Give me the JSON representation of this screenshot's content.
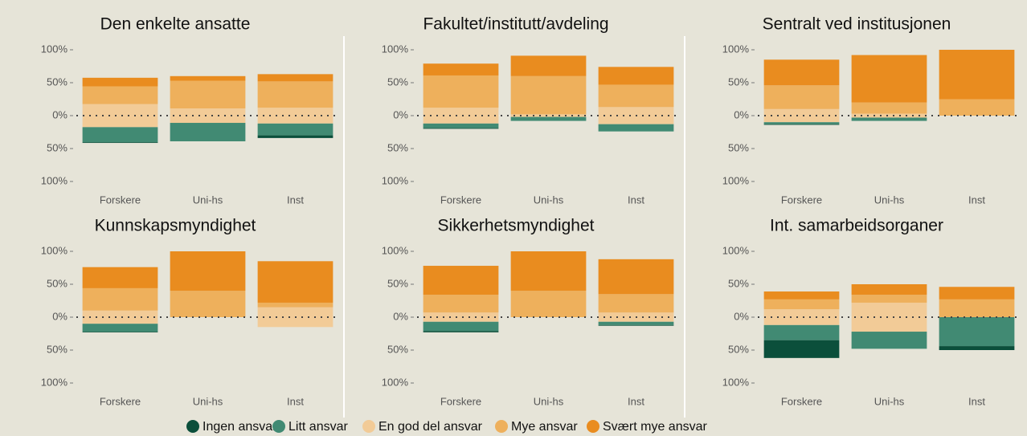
{
  "chart_data": [
    {
      "type": "bar",
      "title": "Den enkelte ansatte",
      "categories": [
        "Forskere",
        "Uni-hs",
        "Inst"
      ],
      "series": [
        {
          "name": "Ingen ansvar",
          "color": "#0b4f3b",
          "values": [
            1,
            0,
            4
          ]
        },
        {
          "name": "Litt ansvar",
          "color": "#418a73",
          "values": [
            23,
            28,
            18
          ]
        },
        {
          "name": "En god del ansvar",
          "color": "#f2cb97",
          "values": [
            35,
            22,
            24
          ]
        },
        {
          "name": "Mye ansvar",
          "color": "#eeb05c",
          "values": [
            27,
            42,
            40
          ]
        },
        {
          "name": "Svært mye ansvar",
          "color": "#e98c1f",
          "values": [
            13,
            7,
            11
          ]
        }
      ],
      "ylim": [
        -105,
        105
      ],
      "yticks": [
        {
          "value": -100,
          "label": "100%"
        },
        {
          "value": -50,
          "label": "50%"
        },
        {
          "value": 0,
          "label": "0%"
        },
        {
          "value": 50,
          "label": "50%"
        },
        {
          "value": 100,
          "label": "100%"
        }
      ]
    },
    {
      "type": "bar",
      "title": "Fakultet/institutt/avdeling",
      "categories": [
        "Forskere",
        "Uni-hs",
        "Inst"
      ],
      "series": [
        {
          "name": "Ingen ansvar",
          "color": "#0b4f3b",
          "values": [
            1,
            0,
            0
          ]
        },
        {
          "name": "Litt ansvar",
          "color": "#418a73",
          "values": [
            7,
            6,
            11
          ]
        },
        {
          "name": "En god del ansvar",
          "color": "#f2cb97",
          "values": [
            24,
            4,
            26
          ]
        },
        {
          "name": "Mye ansvar",
          "color": "#eeb05c",
          "values": [
            49,
            58,
            34
          ]
        },
        {
          "name": "Svært mye ansvar",
          "color": "#e98c1f",
          "values": [
            18,
            31,
            27
          ]
        }
      ],
      "ylim": [
        -105,
        105
      ],
      "yticks": [
        {
          "value": -100,
          "label": "100%"
        },
        {
          "value": -50,
          "label": "50%"
        },
        {
          "value": 0,
          "label": "0%"
        },
        {
          "value": 50,
          "label": "50%"
        },
        {
          "value": 100,
          "label": "100%"
        }
      ]
    },
    {
      "type": "bar",
      "title": "Sentralt ved institusjonen",
      "categories": [
        "Forskere",
        "Uni-hs",
        "Inst"
      ],
      "series": [
        {
          "name": "Ingen ansvar",
          "color": "#0b4f3b",
          "values": [
            1,
            0,
            0
          ]
        },
        {
          "name": "Litt ansvar",
          "color": "#418a73",
          "values": [
            3,
            5,
            0
          ]
        },
        {
          "name": "En god del ansvar",
          "color": "#f2cb97",
          "values": [
            20,
            6,
            0
          ]
        },
        {
          "name": "Mye ansvar",
          "color": "#eeb05c",
          "values": [
            36,
            17,
            25
          ]
        },
        {
          "name": "Svært mye ansvar",
          "color": "#e98c1f",
          "values": [
            39,
            72,
            75
          ]
        }
      ],
      "ylim": [
        -105,
        105
      ],
      "yticks": [
        {
          "value": -100,
          "label": "100%"
        },
        {
          "value": -50,
          "label": "50%"
        },
        {
          "value": 0,
          "label": "0%"
        },
        {
          "value": 50,
          "label": "50%"
        },
        {
          "value": 100,
          "label": "100%"
        }
      ]
    },
    {
      "type": "bar",
      "title": "Kunnskapsmyndighet",
      "categories": [
        "Forskere",
        "Uni-hs",
        "Inst"
      ],
      "series": [
        {
          "name": "Ingen ansvar",
          "color": "#0b4f3b",
          "values": [
            1,
            0,
            0
          ]
        },
        {
          "name": "Litt ansvar",
          "color": "#418a73",
          "values": [
            12,
            0,
            0
          ]
        },
        {
          "name": "En god del ansvar",
          "color": "#f2cb97",
          "values": [
            20,
            0,
            30
          ]
        },
        {
          "name": "Mye ansvar",
          "color": "#eeb05c",
          "values": [
            34,
            40,
            7
          ]
        },
        {
          "name": "Svært mye ansvar",
          "color": "#e98c1f",
          "values": [
            32,
            60,
            63
          ]
        }
      ],
      "ylim": [
        -105,
        105
      ],
      "yticks": [
        {
          "value": -100,
          "label": "100%"
        },
        {
          "value": -50,
          "label": "50%"
        },
        {
          "value": 0,
          "label": "0%"
        },
        {
          "value": 50,
          "label": "50%"
        },
        {
          "value": 100,
          "label": "100%"
        }
      ]
    },
    {
      "type": "bar",
      "title": "Sikkerhetsmyndighet",
      "categories": [
        "Forskere",
        "Uni-hs",
        "Inst"
      ],
      "series": [
        {
          "name": "Ingen ansvar",
          "color": "#0b4f3b",
          "values": [
            2,
            0,
            1
          ]
        },
        {
          "name": "Litt ansvar",
          "color": "#418a73",
          "values": [
            14,
            0,
            5
          ]
        },
        {
          "name": "En god del ansvar",
          "color": "#f2cb97",
          "values": [
            14,
            0,
            14
          ]
        },
        {
          "name": "Mye ansvar",
          "color": "#eeb05c",
          "values": [
            27,
            40,
            28
          ]
        },
        {
          "name": "Svært mye ansvar",
          "color": "#e98c1f",
          "values": [
            44,
            60,
            53
          ]
        }
      ],
      "ylim": [
        -105,
        105
      ],
      "yticks": [
        {
          "value": -100,
          "label": "100%"
        },
        {
          "value": -50,
          "label": "50%"
        },
        {
          "value": 0,
          "label": "0%"
        },
        {
          "value": 50,
          "label": "50%"
        },
        {
          "value": 100,
          "label": "100%"
        }
      ]
    },
    {
      "type": "bar",
      "title": "Int. samarbeidsorganer",
      "categories": [
        "Forskere",
        "Uni-hs",
        "Inst"
      ],
      "series": [
        {
          "name": "Ingen ansvar",
          "color": "#0b4f3b",
          "values": [
            27,
            0,
            6
          ]
        },
        {
          "name": "Litt ansvar",
          "color": "#418a73",
          "values": [
            23,
            26,
            44
          ]
        },
        {
          "name": "En god del ansvar",
          "color": "#f2cb97",
          "values": [
            24,
            44,
            0
          ]
        },
        {
          "name": "Mye ansvar",
          "color": "#eeb05c",
          "values": [
            15,
            12,
            27
          ]
        },
        {
          "name": "Svært mye ansvar",
          "color": "#e98c1f",
          "values": [
            12,
            16,
            19
          ]
        }
      ],
      "ylim": [
        -105,
        105
      ],
      "yticks": [
        {
          "value": -100,
          "label": "100%"
        },
        {
          "value": -50,
          "label": "50%"
        },
        {
          "value": 0,
          "label": "0%"
        },
        {
          "value": 50,
          "label": "50%"
        },
        {
          "value": 100,
          "label": "100%"
        }
      ]
    }
  ]
}
